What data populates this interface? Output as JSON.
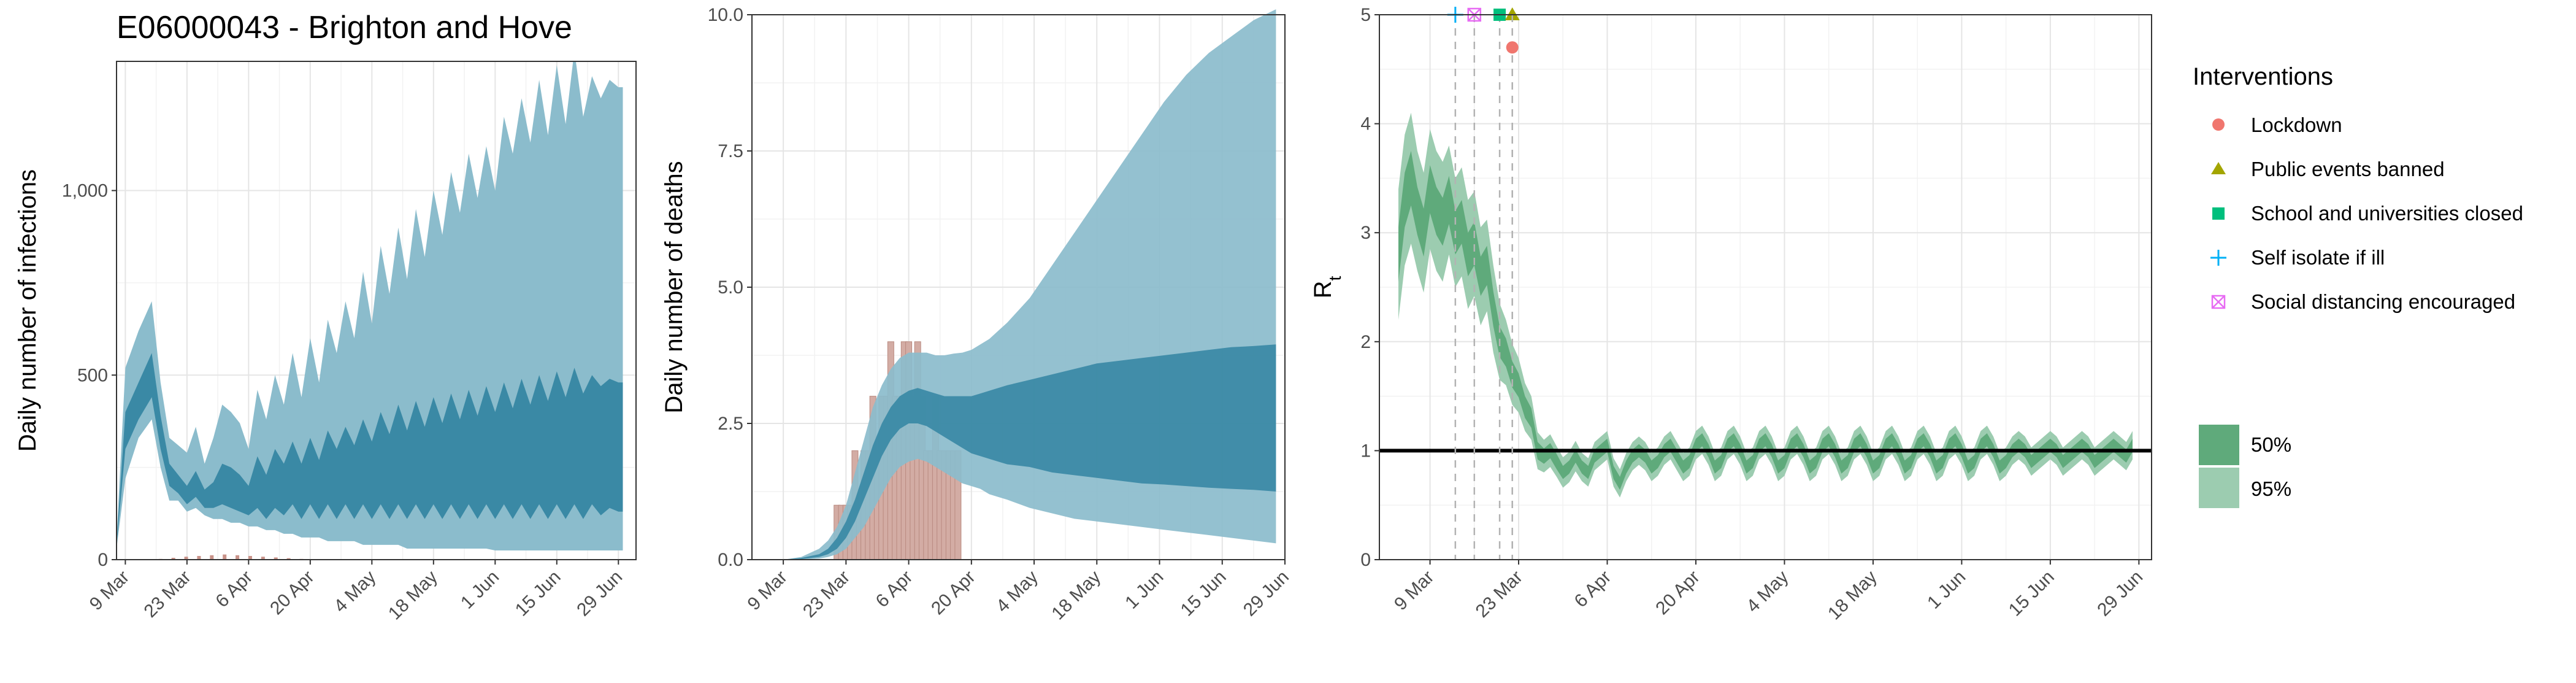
{
  "title": "E06000043 - Brighton and Hove",
  "colors": {
    "infection_ci95": "#8bbccc",
    "infection_ci50": "#3a89a5",
    "infection_observed": "#c9938a",
    "deaths_ci95": "#8bbccc",
    "deaths_ci50": "#3a89a5",
    "deaths_observed": "#d3aca4",
    "rt_ci95": "#9cccb0",
    "rt_ci50": "#5faa7b",
    "rt_line": "#000000",
    "lockdown": "#f0766e",
    "public_events": "#a3a500",
    "schools": "#00bf7d",
    "self_isolate": "#00b0f6",
    "social_distancing": "#e76bf3"
  },
  "x_tick_labels": [
    "9 Mar",
    "23 Mar",
    "6 Apr",
    "20 Apr",
    "4 May",
    "18 May",
    "1 Jun",
    "15 Jun",
    "29 Jun"
  ],
  "legend": {
    "title": "Interventions",
    "items": [
      {
        "label": "Lockdown",
        "icon": "circle"
      },
      {
        "label": "Public events banned",
        "icon": "triangle"
      },
      {
        "label": "School and universities closed",
        "icon": "square"
      },
      {
        "label": "Self isolate if ill",
        "icon": "plus"
      },
      {
        "label": "Social distancing encouraged",
        "icon": "boxed-x"
      }
    ],
    "bands": [
      {
        "label": "50%"
      },
      {
        "label": "95%"
      }
    ]
  },
  "chart_data": [
    {
      "type": "area",
      "panel": "infections",
      "title": "E06000043 - Brighton and Hove",
      "xlabel": "",
      "ylabel": "Daily number of infections",
      "x_axis": "date (days since 9 Mar)",
      "xlim": [
        -2,
        116
      ],
      "ylim": [
        0,
        1350
      ],
      "y_ticks": [
        0,
        500,
        1000
      ],
      "y_tick_labels": [
        "0",
        "500",
        "1,000"
      ],
      "grid": true,
      "x": [
        -5,
        -3,
        -3,
        0,
        3,
        6,
        8,
        10,
        12,
        14,
        16,
        18,
        20,
        22,
        24,
        26,
        28,
        30,
        32,
        34,
        36,
        38,
        40,
        42,
        44,
        46,
        48,
        50,
        52,
        54,
        56,
        58,
        60,
        62,
        64,
        66,
        68,
        70,
        72,
        74,
        76,
        78,
        80,
        82,
        84,
        86,
        88,
        90,
        92,
        94,
        96,
        98,
        100,
        102,
        104,
        106,
        108,
        110,
        112,
        113
      ],
      "ci95_upper": [
        150,
        150,
        55,
        520,
        620,
        700,
        480,
        330,
        310,
        290,
        360,
        260,
        330,
        420,
        400,
        370,
        300,
        460,
        380,
        500,
        420,
        560,
        440,
        600,
        480,
        650,
        560,
        700,
        600,
        780,
        640,
        850,
        720,
        900,
        760,
        950,
        820,
        1000,
        880,
        1050,
        940,
        1100,
        980,
        1120,
        1000,
        1200,
        1100,
        1250,
        1130,
        1300,
        1150,
        1340,
        1180,
        1380,
        1200,
        1310,
        1250,
        1300,
        1280,
        1280
      ],
      "ci95_lower": [
        55,
        55,
        30,
        220,
        330,
        380,
        250,
        160,
        160,
        130,
        140,
        120,
        110,
        110,
        100,
        100,
        90,
        90,
        80,
        80,
        70,
        70,
        60,
        60,
        60,
        50,
        50,
        50,
        50,
        40,
        40,
        40,
        40,
        40,
        30,
        30,
        30,
        30,
        30,
        30,
        30,
        30,
        30,
        30,
        25,
        25,
        25,
        25,
        25,
        25,
        25,
        25,
        25,
        25,
        25,
        25,
        25,
        25,
        25,
        25
      ],
      "ci50_upper": [
        100,
        100,
        45,
        400,
        480,
        560,
        390,
        260,
        230,
        200,
        240,
        190,
        210,
        260,
        250,
        230,
        200,
        280,
        230,
        300,
        260,
        320,
        260,
        330,
        270,
        350,
        300,
        360,
        310,
        380,
        320,
        400,
        340,
        420,
        350,
        430,
        360,
        440,
        370,
        450,
        380,
        460,
        390,
        470,
        400,
        480,
        410,
        490,
        420,
        500,
        430,
        510,
        440,
        520,
        450,
        500,
        470,
        490,
        480,
        480
      ],
      "ci50_lower": [
        70,
        70,
        38,
        300,
        380,
        440,
        300,
        200,
        180,
        150,
        170,
        140,
        140,
        150,
        140,
        130,
        120,
        140,
        110,
        140,
        120,
        150,
        110,
        150,
        110,
        150,
        110,
        150,
        110,
        150,
        110,
        150,
        110,
        150,
        110,
        150,
        110,
        150,
        110,
        150,
        110,
        150,
        110,
        150,
        110,
        150,
        110,
        150,
        110,
        150,
        110,
        150,
        110,
        150,
        110,
        150,
        120,
        140,
        130,
        130
      ],
      "observed": {
        "x_start": 8,
        "x_end": 40,
        "approx_values": [
          2,
          5,
          8,
          10,
          12,
          14,
          12,
          10,
          8,
          6,
          4,
          2
        ]
      }
    },
    {
      "type": "area",
      "panel": "deaths",
      "xlabel": "",
      "ylabel": "Daily number of deaths",
      "x_axis": "date (days since 9 Mar)",
      "xlim": [
        -7,
        112
      ],
      "ylim": [
        0,
        10
      ],
      "y_ticks": [
        0,
        2.5,
        5,
        7.5,
        10
      ],
      "y_tick_labels": [
        "0.0",
        "2.5",
        "5.0",
        "7.5",
        "10.0"
      ],
      "grid": true,
      "x": [
        0,
        4,
        8,
        10,
        12,
        14,
        16,
        18,
        20,
        22,
        24,
        26,
        28,
        30,
        32,
        34,
        36,
        38,
        40,
        42,
        44,
        46,
        48,
        50,
        55,
        60,
        65,
        70,
        75,
        80,
        85,
        90,
        95,
        100,
        105,
        110
      ],
      "ci95_upper": [
        0.0,
        0.05,
        0.2,
        0.35,
        0.6,
        1.0,
        1.6,
        2.2,
        2.8,
        3.2,
        3.5,
        3.7,
        3.8,
        3.8,
        3.8,
        3.75,
        3.75,
        3.78,
        3.8,
        3.85,
        3.95,
        4.05,
        4.2,
        4.35,
        4.8,
        5.4,
        6.0,
        6.6,
        7.2,
        7.8,
        8.4,
        8.9,
        9.3,
        9.6,
        9.9,
        10.1
      ],
      "ci95_lower": [
        0.0,
        0.0,
        0.02,
        0.05,
        0.1,
        0.2,
        0.4,
        0.6,
        0.9,
        1.2,
        1.5,
        1.7,
        1.8,
        1.85,
        1.8,
        1.7,
        1.6,
        1.5,
        1.4,
        1.35,
        1.3,
        1.2,
        1.15,
        1.1,
        0.95,
        0.85,
        0.75,
        0.7,
        0.65,
        0.6,
        0.55,
        0.5,
        0.45,
        0.4,
        0.35,
        0.3
      ],
      "ci50_upper": [
        0.0,
        0.03,
        0.1,
        0.2,
        0.4,
        0.7,
        1.1,
        1.6,
        2.1,
        2.5,
        2.8,
        3.0,
        3.1,
        3.15,
        3.1,
        3.05,
        3.0,
        3.0,
        3.0,
        3.0,
        3.05,
        3.1,
        3.15,
        3.2,
        3.3,
        3.4,
        3.5,
        3.6,
        3.65,
        3.7,
        3.75,
        3.8,
        3.85,
        3.9,
        3.92,
        3.95
      ],
      "ci50_lower": [
        0.0,
        0.01,
        0.05,
        0.1,
        0.2,
        0.4,
        0.7,
        1.1,
        1.5,
        1.9,
        2.2,
        2.4,
        2.5,
        2.5,
        2.45,
        2.35,
        2.25,
        2.15,
        2.05,
        1.95,
        1.9,
        1.85,
        1.8,
        1.75,
        1.7,
        1.6,
        1.55,
        1.5,
        1.45,
        1.4,
        1.38,
        1.35,
        1.32,
        1.3,
        1.28,
        1.25
      ],
      "observed_bars": {
        "x": [
          12,
          13,
          14,
          15,
          16,
          17,
          18,
          19,
          20,
          21,
          22,
          23,
          24,
          25,
          26,
          27,
          28,
          29,
          30,
          31,
          32,
          33,
          34,
          35,
          36,
          37,
          38,
          39
        ],
        "values": [
          1,
          1,
          1,
          1,
          2,
          1,
          2,
          2,
          3,
          2,
          3,
          3,
          4,
          3,
          3,
          4,
          4,
          3,
          4,
          3,
          2,
          2,
          3,
          2,
          2,
          2,
          2,
          2
        ]
      }
    },
    {
      "type": "area",
      "panel": "rt",
      "xlabel": "",
      "ylabel": "Rt",
      "x_axis": "date (days since 9 Mar)",
      "xlim": [
        -8,
        114
      ],
      "ylim": [
        0,
        5
      ],
      "y_ticks": [
        0,
        1,
        2,
        3,
        4,
        5
      ],
      "y_tick_labels": [
        "0",
        "1",
        "2",
        "3",
        "4",
        "5"
      ],
      "grid": true,
      "reference_line": 1,
      "x": [
        -5,
        -4,
        -3,
        -2,
        -1,
        0,
        1,
        2,
        3,
        4,
        5,
        6,
        7,
        8,
        9,
        10,
        11,
        12,
        13,
        14,
        15,
        16,
        17,
        18,
        19,
        20,
        21,
        22,
        23,
        24,
        25,
        26,
        27,
        28,
        29,
        30,
        31,
        32,
        33,
        34,
        35,
        36,
        37,
        38,
        39,
        40,
        41,
        42,
        43,
        44,
        45,
        46,
        47,
        48,
        49,
        50,
        51,
        52,
        53,
        54,
        55,
        56,
        57,
        58,
        59,
        60,
        61,
        62,
        63,
        64,
        65,
        66,
        67,
        68,
        69,
        70,
        71,
        72,
        73,
        74,
        75,
        76,
        77,
        78,
        79,
        80,
        81,
        82,
        83,
        84,
        85,
        86,
        87,
        88,
        89,
        90,
        91,
        92,
        93,
        94,
        95,
        96,
        97,
        98,
        99,
        100,
        101,
        102,
        103,
        104,
        105,
        106,
        107,
        108,
        109,
        110,
        111
      ],
      "median": [
        2.8,
        3.3,
        3.5,
        3.2,
        3.0,
        3.4,
        3.2,
        3.1,
        3.3,
        3.0,
        3.1,
        2.8,
        2.9,
        2.6,
        2.7,
        2.3,
        2.0,
        1.9,
        1.7,
        1.6,
        1.4,
        1.3,
        1.0,
        0.95,
        1.0,
        0.9,
        0.8,
        0.85,
        0.95,
        0.85,
        0.8,
        0.95,
        1.0,
        1.05,
        0.8,
        0.7,
        0.85,
        0.95,
        1.0,
        0.95,
        0.85,
        0.9,
        1.0,
        1.05,
        0.95,
        0.85,
        0.9,
        1.05,
        1.1,
        1.0,
        0.85,
        0.9,
        1.05,
        1.1,
        1.0,
        0.85,
        0.9,
        1.05,
        1.1,
        1.0,
        0.85,
        0.9,
        1.05,
        1.1,
        1.0,
        0.85,
        0.9,
        1.05,
        1.1,
        1.0,
        0.85,
        0.9,
        1.05,
        1.1,
        1.0,
        0.85,
        0.9,
        1.05,
        1.1,
        1.0,
        0.85,
        0.9,
        1.05,
        1.1,
        1.0,
        0.85,
        0.9,
        1.05,
        1.1,
        1.0,
        0.85,
        0.9,
        1.05,
        1.1,
        1.0,
        0.85,
        0.9,
        1.0,
        1.05,
        1.0,
        0.9,
        0.95,
        1.0,
        1.05,
        1.0,
        0.9,
        0.95,
        1.0,
        1.05,
        1.0,
        0.9,
        0.95,
        1.0,
        1.05,
        1.0,
        0.95,
        1.05
      ],
      "ci50_halfwidth": [
        0.25,
        0.25,
        0.25,
        0.22,
        0.22,
        0.22,
        0.22,
        0.22,
        0.22,
        0.2,
        0.2,
        0.2,
        0.2,
        0.18,
        0.18,
        0.16,
        0.14,
        0.13,
        0.12,
        0.11,
        0.1,
        0.09,
        0.08,
        0.07,
        0.07,
        0.07,
        0.06,
        0.06,
        0.06,
        0.06,
        0.06,
        0.06,
        0.06,
        0.06,
        0.06,
        0.06,
        0.06,
        0.06,
        0.06,
        0.06,
        0.06,
        0.06,
        0.06,
        0.06,
        0.06,
        0.06,
        0.06,
        0.06,
        0.06,
        0.06,
        0.06,
        0.06,
        0.06,
        0.06,
        0.06,
        0.06,
        0.06,
        0.06,
        0.06,
        0.06,
        0.06,
        0.06,
        0.06,
        0.06,
        0.06,
        0.06,
        0.06,
        0.06,
        0.06,
        0.06,
        0.06,
        0.06,
        0.06,
        0.06,
        0.06,
        0.06,
        0.06,
        0.06,
        0.06,
        0.06,
        0.06,
        0.06,
        0.06,
        0.06,
        0.06,
        0.06,
        0.06,
        0.06,
        0.06,
        0.06,
        0.06,
        0.06,
        0.06,
        0.06,
        0.06,
        0.06,
        0.06,
        0.06,
        0.06,
        0.06,
        0.06,
        0.06,
        0.06,
        0.06,
        0.06,
        0.06,
        0.06,
        0.06,
        0.06,
        0.06,
        0.06,
        0.06,
        0.06,
        0.06,
        0.06,
        0.06,
        0.06
      ],
      "ci95_halfwidth": [
        0.6,
        0.6,
        0.6,
        0.55,
        0.55,
        0.55,
        0.55,
        0.55,
        0.5,
        0.5,
        0.5,
        0.5,
        0.48,
        0.45,
        0.42,
        0.4,
        0.35,
        0.3,
        0.28,
        0.25,
        0.22,
        0.2,
        0.17,
        0.15,
        0.15,
        0.14,
        0.14,
        0.14,
        0.14,
        0.13,
        0.13,
        0.13,
        0.13,
        0.13,
        0.13,
        0.13,
        0.13,
        0.13,
        0.13,
        0.13,
        0.13,
        0.13,
        0.13,
        0.13,
        0.13,
        0.13,
        0.13,
        0.13,
        0.13,
        0.13,
        0.13,
        0.13,
        0.13,
        0.13,
        0.13,
        0.13,
        0.13,
        0.13,
        0.13,
        0.13,
        0.13,
        0.13,
        0.13,
        0.13,
        0.13,
        0.13,
        0.13,
        0.13,
        0.13,
        0.13,
        0.13,
        0.13,
        0.13,
        0.13,
        0.13,
        0.13,
        0.13,
        0.13,
        0.13,
        0.13,
        0.13,
        0.13,
        0.13,
        0.13,
        0.13,
        0.13,
        0.13,
        0.13,
        0.13,
        0.13,
        0.13,
        0.13,
        0.13,
        0.13,
        0.13,
        0.13,
        0.13,
        0.13,
        0.13,
        0.13,
        0.13,
        0.13,
        0.13,
        0.13,
        0.13,
        0.13,
        0.13,
        0.13,
        0.13,
        0.13,
        0.13,
        0.13,
        0.13,
        0.13,
        0.13,
        0.13,
        0.13
      ],
      "interventions": [
        {
          "name": "Self isolate if ill",
          "x": 4,
          "marker_y": 5.0,
          "icon": "plus"
        },
        {
          "name": "Social distancing encouraged",
          "x": 7,
          "marker_y": 5.0,
          "icon": "boxed-x"
        },
        {
          "name": "School and universities closed",
          "x": 11,
          "marker_y": 5.0,
          "icon": "square"
        },
        {
          "name": "Public events banned",
          "x": 13,
          "marker_y": 5.0,
          "icon": "triangle"
        },
        {
          "name": "Lockdown",
          "x": 13,
          "marker_y": 4.7,
          "icon": "circle"
        }
      ]
    }
  ]
}
